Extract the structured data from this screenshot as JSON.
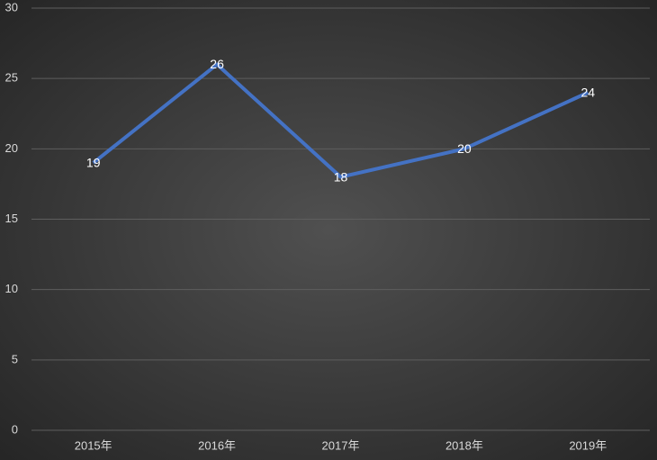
{
  "chart_data": {
    "type": "line",
    "categories": [
      "2015年",
      "2016年",
      "2017年",
      "2018年",
      "2019年"
    ],
    "values": [
      19,
      26,
      18,
      20,
      24
    ],
    "color": "#4472c4",
    "ylim": [
      0,
      30
    ],
    "yticks": [
      0,
      5,
      10,
      15,
      20,
      25,
      30
    ],
    "grid": true
  }
}
